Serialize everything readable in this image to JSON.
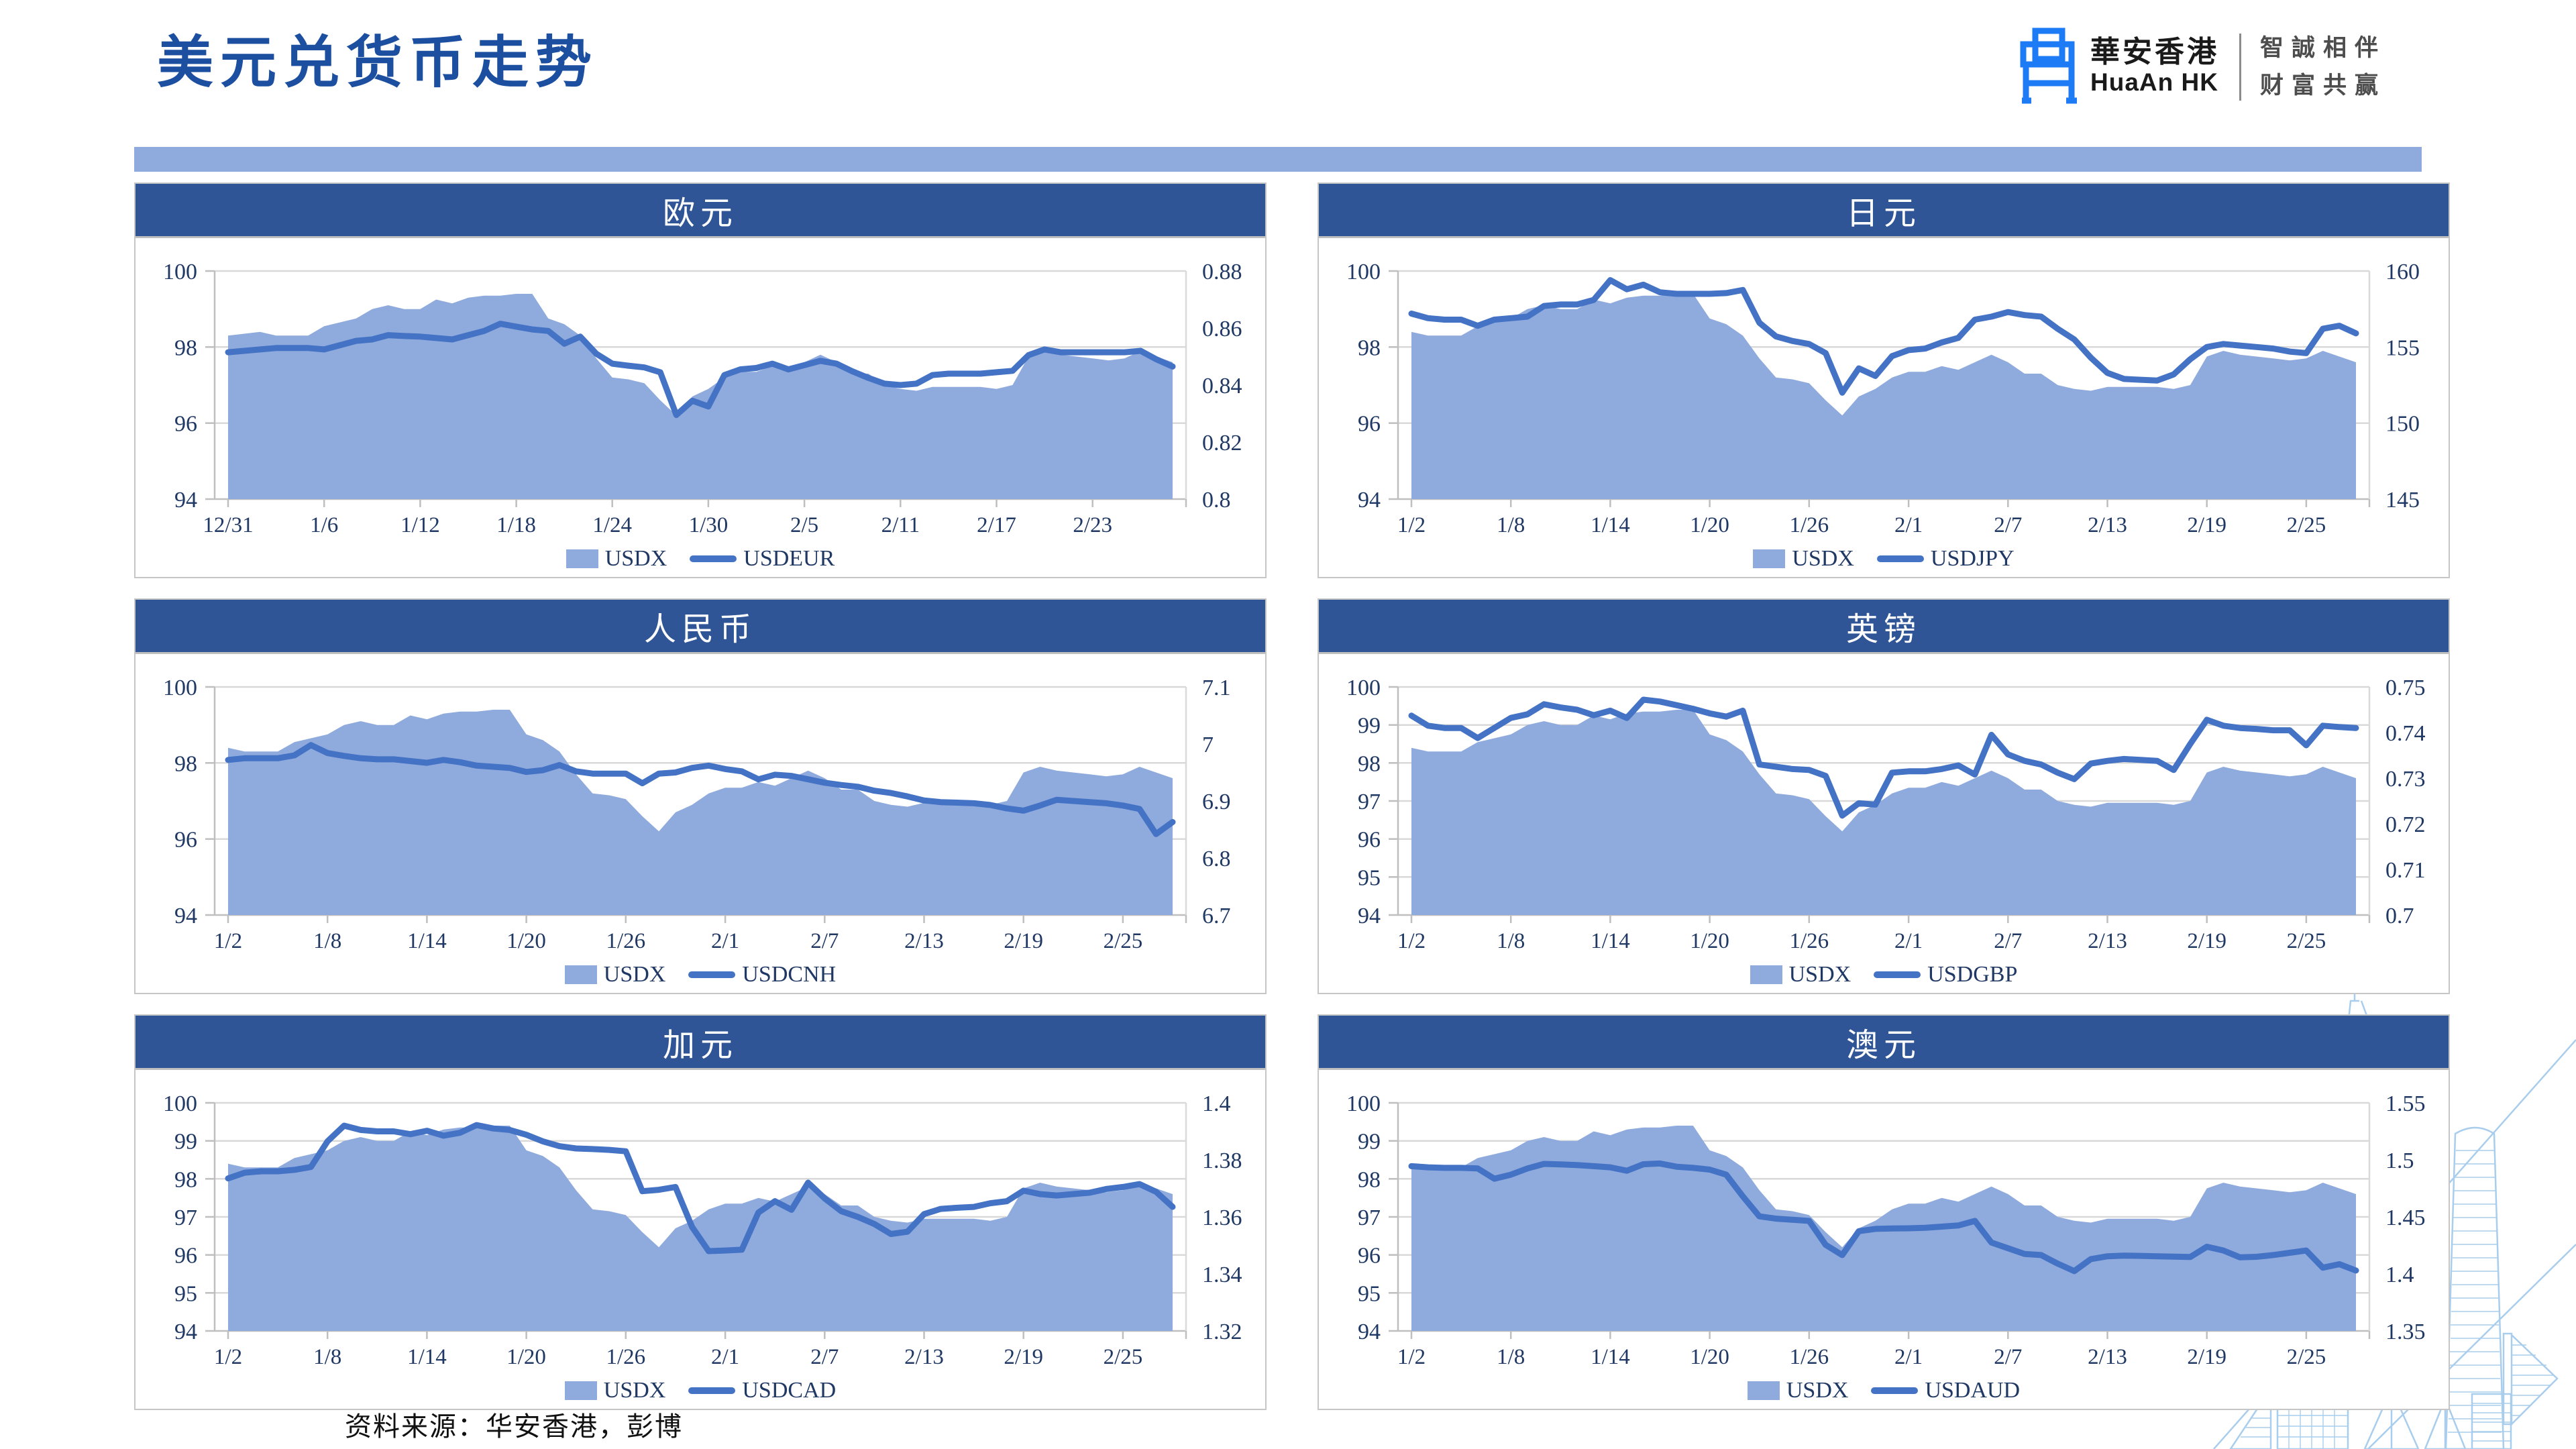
{
  "page": {
    "title": "美元兑货币走势",
    "source_note": "资料来源：华安香港，彭博"
  },
  "logo": {
    "name_zh": "華安香港",
    "name_en": "HuaAn HK",
    "slogan_line1": "智誠相伴",
    "slogan_line2": "财富共赢",
    "icon": "huaan-gate-icon"
  },
  "colors": {
    "title_blue": "#1C4FA0",
    "accent_bar": "#8FAADC",
    "header_bar": "#2F5597",
    "area_fill": "#8FAADC",
    "line": "#4472C4",
    "grid": "#D9D9D9",
    "axis_line": "#BFBFBF",
    "axis_text": "#1F3864",
    "watermark": "#A9CDEC",
    "logo_blue": "#1E7BF6"
  },
  "chart_data": [
    {
      "id": "eur",
      "type": "area+line",
      "title": "欧元",
      "legend": [
        "USDX",
        "USDEUR"
      ],
      "x_tick_labels": [
        "12/31",
        "1/6",
        "1/12",
        "1/18",
        "1/24",
        "1/30",
        "2/5",
        "2/11",
        "2/17",
        "2/23"
      ],
      "tick_every": 6,
      "left_axis": {
        "min": 94,
        "max": 100,
        "tick_labels": [
          "100",
          "98",
          "96",
          "94"
        ]
      },
      "right_axis": {
        "min": 0.8,
        "max": 0.88,
        "tick_labels": [
          "0.88",
          "0.86",
          "0.84",
          "0.82",
          "0.8"
        ]
      },
      "series": [
        {
          "name": "USDX",
          "type": "area",
          "axis": "left",
          "values": [
            98.3,
            98.35,
            98.4,
            98.3,
            98.3,
            98.3,
            98.55,
            98.65,
            98.75,
            99.0,
            99.1,
            99.0,
            99.0,
            99.25,
            99.15,
            99.3,
            99.35,
            99.35,
            99.4,
            99.4,
            98.75,
            98.6,
            98.3,
            97.7,
            97.2,
            97.15,
            97.05,
            96.6,
            96.2,
            96.7,
            96.9,
            97.2,
            97.35,
            97.35,
            97.5,
            97.4,
            97.6,
            97.8,
            97.6,
            97.3,
            97.3,
            97.0,
            96.9,
            96.85,
            96.95,
            96.95,
            96.95,
            96.95,
            96.9,
            97.0,
            97.75,
            97.9,
            97.8,
            97.75,
            97.7,
            97.65,
            97.7,
            97.9,
            97.75,
            97.6
          ]
        },
        {
          "name": "USDEUR",
          "type": "line",
          "axis": "right",
          "values": [
            0.8515,
            0.852,
            0.8525,
            0.853,
            0.853,
            0.853,
            0.8525,
            0.854,
            0.8555,
            0.856,
            0.8575,
            0.8572,
            0.857,
            0.8565,
            0.856,
            0.8575,
            0.859,
            0.8615,
            0.8605,
            0.8595,
            0.859,
            0.8545,
            0.857,
            0.851,
            0.8475,
            0.8468,
            0.8462,
            0.8445,
            0.8295,
            0.8345,
            0.8325,
            0.8435,
            0.8455,
            0.846,
            0.8475,
            0.8455,
            0.847,
            0.8485,
            0.8475,
            0.8448,
            0.8425,
            0.8405,
            0.84,
            0.8405,
            0.8435,
            0.844,
            0.844,
            0.844,
            0.8445,
            0.845,
            0.8505,
            0.8525,
            0.8515,
            0.8515,
            0.8515,
            0.8515,
            0.8515,
            0.852,
            0.849,
            0.8465
          ]
        }
      ]
    },
    {
      "id": "jpy",
      "type": "area+line",
      "title": "日元",
      "legend": [
        "USDX",
        "USDJPY"
      ],
      "x_tick_labels": [
        "1/2",
        "1/8",
        "1/14",
        "1/20",
        "1/26",
        "2/1",
        "2/7",
        "2/13",
        "2/19",
        "2/25"
      ],
      "tick_every": 6,
      "left_axis": {
        "min": 94,
        "max": 100,
        "tick_labels": [
          "100",
          "98",
          "96",
          "94"
        ]
      },
      "right_axis": {
        "min": 145,
        "max": 160,
        "tick_labels": [
          "160",
          "155",
          "150",
          "145"
        ]
      },
      "series": [
        {
          "name": "USDX",
          "type": "area",
          "axis": "left",
          "values": [
            98.4,
            98.3,
            98.3,
            98.3,
            98.55,
            98.65,
            98.75,
            99.0,
            99.1,
            99.0,
            99.0,
            99.25,
            99.15,
            99.3,
            99.35,
            99.35,
            99.4,
            99.4,
            98.75,
            98.6,
            98.3,
            97.7,
            97.2,
            97.15,
            97.05,
            96.6,
            96.2,
            96.7,
            96.9,
            97.2,
            97.35,
            97.35,
            97.5,
            97.4,
            97.6,
            97.8,
            97.6,
            97.3,
            97.3,
            97.0,
            96.9,
            96.85,
            96.95,
            96.95,
            96.95,
            96.95,
            96.9,
            97.0,
            97.75,
            97.9,
            97.8,
            97.75,
            97.7,
            97.65,
            97.7,
            97.9,
            97.75,
            97.6
          ]
        },
        {
          "name": "USDJPY",
          "type": "line",
          "axis": "right",
          "values": [
            157.2,
            156.9,
            156.8,
            156.8,
            156.4,
            156.8,
            156.9,
            157.0,
            157.7,
            157.8,
            157.8,
            158.1,
            159.4,
            158.8,
            159.1,
            158.6,
            158.5,
            158.5,
            158.5,
            158.55,
            158.75,
            156.6,
            155.7,
            155.4,
            155.2,
            154.6,
            152.0,
            153.6,
            153.1,
            154.4,
            154.8,
            154.9,
            155.3,
            155.6,
            156.8,
            157.0,
            157.3,
            157.1,
            157.0,
            156.2,
            155.5,
            154.3,
            153.3,
            152.9,
            152.85,
            152.8,
            153.2,
            154.2,
            155.0,
            155.2,
            155.1,
            155.0,
            154.9,
            154.7,
            154.6,
            156.2,
            156.4,
            155.9
          ]
        }
      ]
    },
    {
      "id": "cnh",
      "type": "area+line",
      "title": "人民币",
      "legend": [
        "USDX",
        "USDCNH"
      ],
      "x_tick_labels": [
        "1/2",
        "1/8",
        "1/14",
        "1/20",
        "1/26",
        "2/1",
        "2/7",
        "2/13",
        "2/19",
        "2/25"
      ],
      "tick_every": 6,
      "left_axis": {
        "min": 94,
        "max": 100,
        "tick_labels": [
          "100",
          "98",
          "96",
          "94"
        ]
      },
      "right_axis": {
        "min": 6.7,
        "max": 7.1,
        "tick_labels": [
          "7.1",
          "7",
          "6.9",
          "6.8",
          "6.7"
        ]
      },
      "series": [
        {
          "name": "USDX",
          "type": "area",
          "axis": "left",
          "values": [
            98.4,
            98.3,
            98.3,
            98.3,
            98.55,
            98.65,
            98.75,
            99.0,
            99.1,
            99.0,
            99.0,
            99.25,
            99.15,
            99.3,
            99.35,
            99.35,
            99.4,
            99.4,
            98.75,
            98.6,
            98.3,
            97.7,
            97.2,
            97.15,
            97.05,
            96.6,
            96.2,
            96.7,
            96.9,
            97.2,
            97.35,
            97.35,
            97.5,
            97.4,
            97.6,
            97.8,
            97.6,
            97.3,
            97.3,
            97.0,
            96.9,
            96.85,
            96.95,
            96.95,
            96.95,
            96.95,
            96.9,
            97.0,
            97.75,
            97.9,
            97.8,
            97.75,
            97.7,
            97.65,
            97.7,
            97.9,
            97.75,
            97.6
          ]
        },
        {
          "name": "USDCNH",
          "type": "line",
          "axis": "right",
          "values": [
            6.972,
            6.975,
            6.975,
            6.975,
            6.98,
            6.998,
            6.984,
            6.979,
            6.975,
            6.973,
            6.973,
            6.97,
            6.967,
            6.972,
            6.968,
            6.962,
            6.96,
            6.958,
            6.951,
            6.954,
            6.963,
            6.952,
            6.948,
            6.948,
            6.948,
            6.931,
            6.948,
            6.95,
            6.958,
            6.962,
            6.956,
            6.952,
            6.938,
            6.946,
            6.944,
            6.938,
            6.932,
            6.928,
            6.925,
            6.918,
            6.914,
            6.908,
            6.901,
            6.898,
            6.897,
            6.896,
            6.893,
            6.887,
            6.883,
            6.892,
            6.902,
            6.9,
            6.898,
            6.896,
            6.892,
            6.886,
            6.842,
            6.863
          ]
        }
      ]
    },
    {
      "id": "gbp",
      "type": "area+line",
      "title": "英镑",
      "legend": [
        "USDX",
        "USDGBP"
      ],
      "x_tick_labels": [
        "1/2",
        "1/8",
        "1/14",
        "1/20",
        "1/26",
        "2/1",
        "2/7",
        "2/13",
        "2/19",
        "2/25"
      ],
      "tick_every": 6,
      "left_axis": {
        "min": 94,
        "max": 100,
        "tick_labels": [
          "100",
          "99",
          "98",
          "97",
          "96",
          "95",
          "94"
        ]
      },
      "right_axis": {
        "min": 0.7,
        "max": 0.75,
        "tick_labels": [
          "0.75",
          "0.74",
          "0.73",
          "0.72",
          "0.71",
          "0.7"
        ]
      },
      "series": [
        {
          "name": "USDX",
          "type": "area",
          "axis": "left",
          "values": [
            98.4,
            98.3,
            98.3,
            98.3,
            98.55,
            98.65,
            98.75,
            99.0,
            99.1,
            99.0,
            99.0,
            99.25,
            99.15,
            99.3,
            99.35,
            99.35,
            99.4,
            99.4,
            98.75,
            98.6,
            98.3,
            97.7,
            97.2,
            97.15,
            97.05,
            96.6,
            96.2,
            96.7,
            96.9,
            97.2,
            97.35,
            97.35,
            97.5,
            97.4,
            97.6,
            97.8,
            97.6,
            97.3,
            97.3,
            97.0,
            96.9,
            96.85,
            96.95,
            96.95,
            96.95,
            96.95,
            96.9,
            97.0,
            97.75,
            97.9,
            97.8,
            97.75,
            97.7,
            97.65,
            97.7,
            97.9,
            97.75,
            97.6
          ]
        },
        {
          "name": "USDGBP",
          "type": "line",
          "axis": "right",
          "values": [
            0.7437,
            0.7415,
            0.741,
            0.741,
            0.7388,
            0.741,
            0.7432,
            0.744,
            0.7462,
            0.7455,
            0.745,
            0.7438,
            0.7448,
            0.7432,
            0.7472,
            0.7468,
            0.746,
            0.7452,
            0.7442,
            0.7435,
            0.7448,
            0.733,
            0.7325,
            0.732,
            0.7318,
            0.7305,
            0.7218,
            0.7245,
            0.7242,
            0.7312,
            0.7315,
            0.7315,
            0.732,
            0.7328,
            0.7308,
            0.7395,
            0.7352,
            0.7338,
            0.733,
            0.7312,
            0.7298,
            0.7332,
            0.7338,
            0.7342,
            0.734,
            0.7338,
            0.7318,
            0.7375,
            0.7428,
            0.7415,
            0.741,
            0.7408,
            0.7405,
            0.7405,
            0.7372,
            0.7415,
            0.7412,
            0.741
          ]
        }
      ]
    },
    {
      "id": "cad",
      "type": "area+line",
      "title": "加元",
      "legend": [
        "USDX",
        "USDCAD"
      ],
      "x_tick_labels": [
        "1/2",
        "1/8",
        "1/14",
        "1/20",
        "1/26",
        "2/1",
        "2/7",
        "2/13",
        "2/19",
        "2/25"
      ],
      "tick_every": 6,
      "left_axis": {
        "min": 94,
        "max": 100,
        "tick_labels": [
          "100",
          "99",
          "98",
          "97",
          "96",
          "95",
          "94"
        ]
      },
      "right_axis": {
        "min": 1.32,
        "max": 1.4,
        "tick_labels": [
          "1.4",
          "1.38",
          "1.36",
          "1.34",
          "1.32"
        ]
      },
      "series": [
        {
          "name": "USDX",
          "type": "area",
          "axis": "left",
          "values": [
            98.4,
            98.3,
            98.3,
            98.3,
            98.55,
            98.65,
            98.75,
            99.0,
            99.1,
            99.0,
            99.0,
            99.25,
            99.15,
            99.3,
            99.35,
            99.35,
            99.4,
            99.4,
            98.75,
            98.6,
            98.3,
            97.7,
            97.2,
            97.15,
            97.05,
            96.6,
            96.2,
            96.7,
            96.9,
            97.2,
            97.35,
            97.35,
            97.5,
            97.4,
            97.6,
            97.8,
            97.6,
            97.3,
            97.3,
            97.0,
            96.9,
            96.85,
            96.95,
            96.95,
            96.95,
            96.95,
            96.9,
            97.0,
            97.75,
            97.9,
            97.8,
            97.75,
            97.7,
            97.65,
            97.7,
            97.9,
            97.75,
            97.6
          ]
        },
        {
          "name": "USDCAD",
          "type": "line",
          "axis": "right",
          "values": [
            1.3735,
            1.3755,
            1.376,
            1.376,
            1.3765,
            1.3775,
            1.3865,
            1.392,
            1.3905,
            1.39,
            1.39,
            1.389,
            1.3902,
            1.3885,
            1.3895,
            1.3922,
            1.391,
            1.3905,
            1.3888,
            1.3865,
            1.3848,
            1.384,
            1.3838,
            1.3835,
            1.383,
            1.369,
            1.3695,
            1.3705,
            1.3565,
            1.348,
            1.3482,
            1.3485,
            1.3615,
            1.3655,
            1.3625,
            1.372,
            1.3665,
            1.362,
            1.36,
            1.3575,
            1.354,
            1.3548,
            1.361,
            1.3628,
            1.3632,
            1.3635,
            1.3648,
            1.3655,
            1.3692,
            1.368,
            1.3675,
            1.368,
            1.3685,
            1.3698,
            1.3705,
            1.3715,
            1.3688,
            1.3635
          ]
        }
      ]
    },
    {
      "id": "aud",
      "type": "area+line",
      "title": "澳元",
      "legend": [
        "USDX",
        "USDAUD"
      ],
      "x_tick_labels": [
        "1/2",
        "1/8",
        "1/14",
        "1/20",
        "1/26",
        "2/1",
        "2/7",
        "2/13",
        "2/19",
        "2/25"
      ],
      "tick_every": 6,
      "left_axis": {
        "min": 94,
        "max": 100,
        "tick_labels": [
          "100",
          "99",
          "98",
          "97",
          "96",
          "95",
          "94"
        ]
      },
      "right_axis": {
        "min": 1.35,
        "max": 1.55,
        "tick_labels": [
          "1.55",
          "1.5",
          "1.45",
          "1.4",
          "1.35"
        ]
      },
      "series": [
        {
          "name": "USDX",
          "type": "area",
          "axis": "left",
          "values": [
            98.4,
            98.3,
            98.3,
            98.3,
            98.55,
            98.65,
            98.75,
            99.0,
            99.1,
            99.0,
            99.0,
            99.25,
            99.15,
            99.3,
            99.35,
            99.35,
            99.4,
            99.4,
            98.75,
            98.6,
            98.3,
            97.7,
            97.2,
            97.15,
            97.05,
            96.6,
            96.2,
            96.7,
            96.9,
            97.2,
            97.35,
            97.35,
            97.5,
            97.4,
            97.6,
            97.8,
            97.6,
            97.3,
            97.3,
            97.0,
            96.9,
            96.85,
            96.95,
            96.95,
            96.95,
            96.95,
            96.9,
            97.0,
            97.75,
            97.9,
            97.8,
            97.75,
            97.7,
            97.65,
            97.7,
            97.9,
            97.75,
            97.6
          ]
        },
        {
          "name": "USDAUD",
          "type": "line",
          "axis": "right",
          "values": [
            1.4945,
            1.4935,
            1.493,
            1.493,
            1.4925,
            1.4835,
            1.487,
            1.4925,
            1.4965,
            1.496,
            1.4955,
            1.4945,
            1.4935,
            1.4905,
            1.4962,
            1.4968,
            1.494,
            1.493,
            1.4915,
            1.487,
            1.468,
            1.4505,
            1.4485,
            1.4475,
            1.4465,
            1.4255,
            1.4165,
            1.4375,
            1.4395,
            1.4398,
            1.44,
            1.4405,
            1.4415,
            1.4425,
            1.4465,
            1.4275,
            1.4225,
            1.4175,
            1.4165,
            1.409,
            1.4025,
            1.413,
            1.4155,
            1.416,
            1.4158,
            1.4155,
            1.4152,
            1.4148,
            1.4238,
            1.4205,
            1.4145,
            1.415,
            1.4165,
            1.4185,
            1.4205,
            1.4055,
            1.4085,
            1.403
          ]
        }
      ]
    }
  ]
}
